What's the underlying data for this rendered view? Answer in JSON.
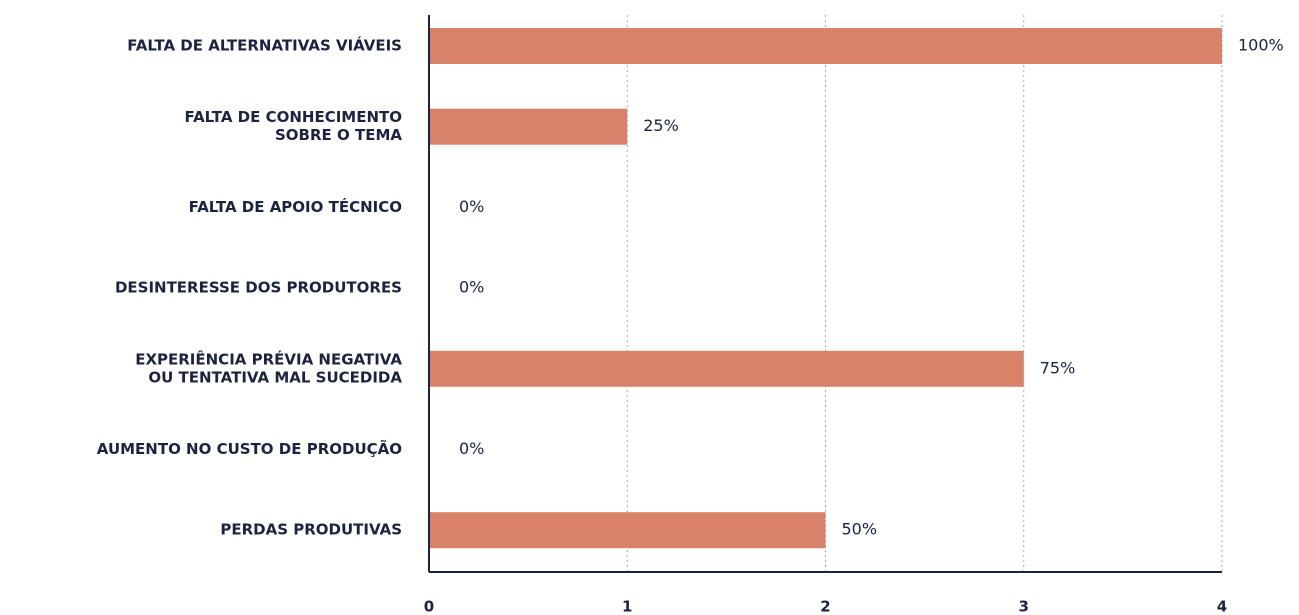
{
  "chart_data": {
    "type": "barh",
    "categories": [
      [
        "FALTA DE ALTERNATIVAS VIÁVEIS"
      ],
      [
        "FALTA DE CONHECIMENTO",
        "SOBRE O TEMA"
      ],
      [
        "FALTA DE APOIO TÉCNICO"
      ],
      [
        "DESINTERESSE DOS PRODUTORES"
      ],
      [
        "EXPERIÊNCIA PRÉVIA NEGATIVA",
        "OU TENTATIVA MAL SUCEDIDA"
      ],
      [
        "AUMENTO NO CUSTO DE PRODUÇÃO"
      ],
      [
        "PERDAS PRODUTIVAS"
      ]
    ],
    "values": [
      4,
      1,
      0,
      0,
      3,
      0,
      2
    ],
    "value_labels": [
      "100%",
      "25%",
      "0%",
      "0%",
      "75%",
      "0%",
      "50%"
    ],
    "color": "#d9826a",
    "xlim": [
      0,
      4
    ],
    "xticks": [
      0,
      1,
      2,
      3,
      4
    ],
    "grid": true
  }
}
